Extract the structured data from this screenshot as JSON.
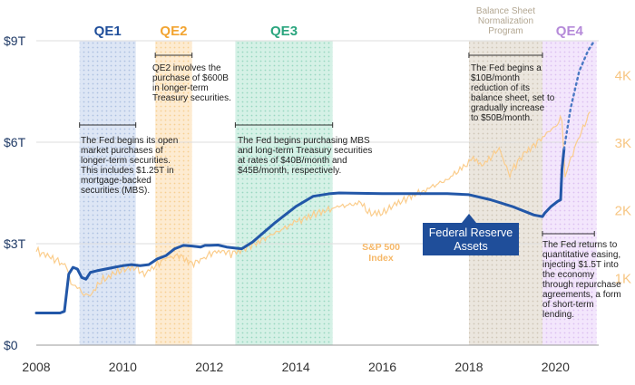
{
  "chart_data": {
    "type": "line",
    "title": "",
    "xlabel": "",
    "ylabel_left": "",
    "ylabel_right": "",
    "xlim": [
      2008,
      2021
    ],
    "ylim_left": [
      0,
      9
    ],
    "ylim_right": [
      0,
      4.5
    ],
    "grid": "horizontal",
    "x_ticks": [
      {
        "value": 2008,
        "label": "2008"
      },
      {
        "value": 2010,
        "label": "2010"
      },
      {
        "value": 2012,
        "label": "2012"
      },
      {
        "value": 2014,
        "label": "2014"
      },
      {
        "value": 2016,
        "label": "2016"
      },
      {
        "value": 2018,
        "label": "2018"
      },
      {
        "value": 2020,
        "label": "2020"
      }
    ],
    "y_ticks_left": [
      {
        "value": 0,
        "label": "$0"
      },
      {
        "value": 3,
        "label": "$3T"
      },
      {
        "value": 6,
        "label": "$6T"
      },
      {
        "value": 9,
        "label": "$9T"
      }
    ],
    "y_ticks_right": [
      {
        "value": 1,
        "label": "1K"
      },
      {
        "value": 2,
        "label": "2K"
      },
      {
        "value": 3,
        "label": "3K"
      },
      {
        "value": 4,
        "label": "4K"
      }
    ],
    "periods": [
      {
        "label": "QE1",
        "start": 2009.0,
        "end": 2010.3,
        "color": "#1f4e9a",
        "fill": "#cfdcef"
      },
      {
        "label": "QE2",
        "start": 2010.75,
        "end": 2011.6,
        "color": "#f2a431",
        "fill": "#fde6c4"
      },
      {
        "label": "QE3",
        "start": 2012.6,
        "end": 2014.85,
        "color": "#2aa57e",
        "fill": "#c9ece0"
      },
      {
        "label": "",
        "start": 2018.0,
        "end": 2019.7,
        "color": "#a89a84",
        "fill": "#e4ddd3"
      },
      {
        "label": "QE4",
        "start": 2019.7,
        "end": 2020.95,
        "color": "#b58ad9",
        "fill": "#eedcf9"
      }
    ],
    "period_caption": "Balance Sheet\nNormalization\nProgram",
    "series": [
      {
        "name": "Federal Reserve\nAssets",
        "axis": "left",
        "color": "#2257a8",
        "x": [
          2008.0,
          2008.55,
          2008.65,
          2008.75,
          2008.85,
          2008.95,
          2009.05,
          2009.15,
          2009.25,
          2009.4,
          2009.6,
          2009.8,
          2010.0,
          2010.2,
          2010.4,
          2010.6,
          2010.8,
          2011.0,
          2011.2,
          2011.4,
          2011.6,
          2011.8,
          2011.9,
          2012.0,
          2012.2,
          2012.4,
          2012.6,
          2012.75,
          2013.0,
          2013.5,
          2014.0,
          2014.4,
          2014.8,
          2015.0,
          2016.0,
          2017.0,
          2017.5,
          2018.0,
          2018.5,
          2019.0,
          2019.5,
          2019.7,
          2019.75,
          2019.9,
          2020.05,
          2020.12,
          2020.15,
          2020.2
        ],
        "y": [
          0.95,
          0.95,
          1.0,
          2.1,
          2.3,
          2.25,
          2.0,
          1.95,
          2.15,
          2.2,
          2.25,
          2.3,
          2.35,
          2.38,
          2.35,
          2.38,
          2.55,
          2.65,
          2.85,
          2.95,
          2.93,
          2.9,
          2.95,
          2.95,
          2.96,
          2.9,
          2.87,
          2.85,
          3.05,
          3.6,
          4.1,
          4.4,
          4.48,
          4.5,
          4.48,
          4.48,
          4.48,
          4.45,
          4.3,
          4.1,
          3.85,
          3.8,
          3.9,
          4.1,
          4.25,
          4.3,
          5.2,
          5.8
        ],
        "projection": {
          "x": [
            2020.2,
            2020.35,
            2020.55,
            2020.75,
            2020.9
          ],
          "y": [
            5.8,
            7.0,
            8.1,
            8.7,
            9.0
          ]
        }
      },
      {
        "name": "S&P 500\nIndex",
        "axis": "right",
        "color": "#fbcd8c",
        "x": [
          2008.0,
          2008.3,
          2008.5,
          2008.7,
          2008.8,
          2008.9,
          2009.0,
          2009.1,
          2009.2,
          2009.5,
          2009.8,
          2010.0,
          2010.3,
          2010.5,
          2010.8,
          2011.0,
          2011.3,
          2011.6,
          2011.8,
          2012.0,
          2012.3,
          2012.5,
          2012.8,
          2013.0,
          2013.5,
          2014.0,
          2014.5,
          2015.0,
          2015.5,
          2015.7,
          2016.0,
          2016.2,
          2016.5,
          2017.0,
          2017.5,
          2018.0,
          2018.1,
          2018.3,
          2018.7,
          2018.95,
          2019.0,
          2019.3,
          2019.5,
          2020.0,
          2020.15,
          2020.22,
          2020.4,
          2020.6,
          2020.8
        ],
        "y": [
          1.4,
          1.3,
          1.25,
          1.15,
          0.95,
          0.85,
          0.85,
          0.75,
          0.7,
          0.95,
          1.05,
          1.12,
          1.15,
          1.05,
          1.2,
          1.28,
          1.33,
          1.2,
          1.25,
          1.35,
          1.4,
          1.35,
          1.42,
          1.48,
          1.65,
          1.82,
          1.95,
          2.05,
          2.1,
          1.95,
          1.95,
          2.05,
          2.15,
          2.3,
          2.45,
          2.7,
          2.78,
          2.65,
          2.9,
          2.5,
          2.6,
          2.85,
          2.95,
          3.25,
          3.35,
          2.5,
          2.85,
          3.15,
          3.45
        ]
      }
    ],
    "annotations": [
      {
        "text": "The Fed begins its open\nmarket purchases of\nlonger-term securities.\nThis includes $1.25T in\nmortgage-backed\nsecurities (MBS).",
        "bracket": [
          2009.0,
          2010.3
        ]
      },
      {
        "text": "QE2 involves the\npurchase of $600B\nin longer-term\nTreasury securities.",
        "bracket": [
          2010.75,
          2011.6
        ]
      },
      {
        "text": "The Fed begins purchasing MBS\nand long-term Treasury securities\nat rates of $40B/month and\n$45B/month, respectively.",
        "bracket": [
          2012.6,
          2014.85
        ]
      },
      {
        "text": "The Fed begins a\n$10B/month\nreduction of its\nbalance sheet, set to\ngradually increase\nto $50B/month.",
        "bracket": [
          2018.0,
          2019.7
        ]
      },
      {
        "text": "The Fed returns to\nquantitative easing,\ninjecting $1.5T into\nthe economy\nthrough repurchase\nagreements, a form\nof short-term\nlending.",
        "bracket": [
          2019.7,
          2020.9
        ]
      }
    ]
  }
}
